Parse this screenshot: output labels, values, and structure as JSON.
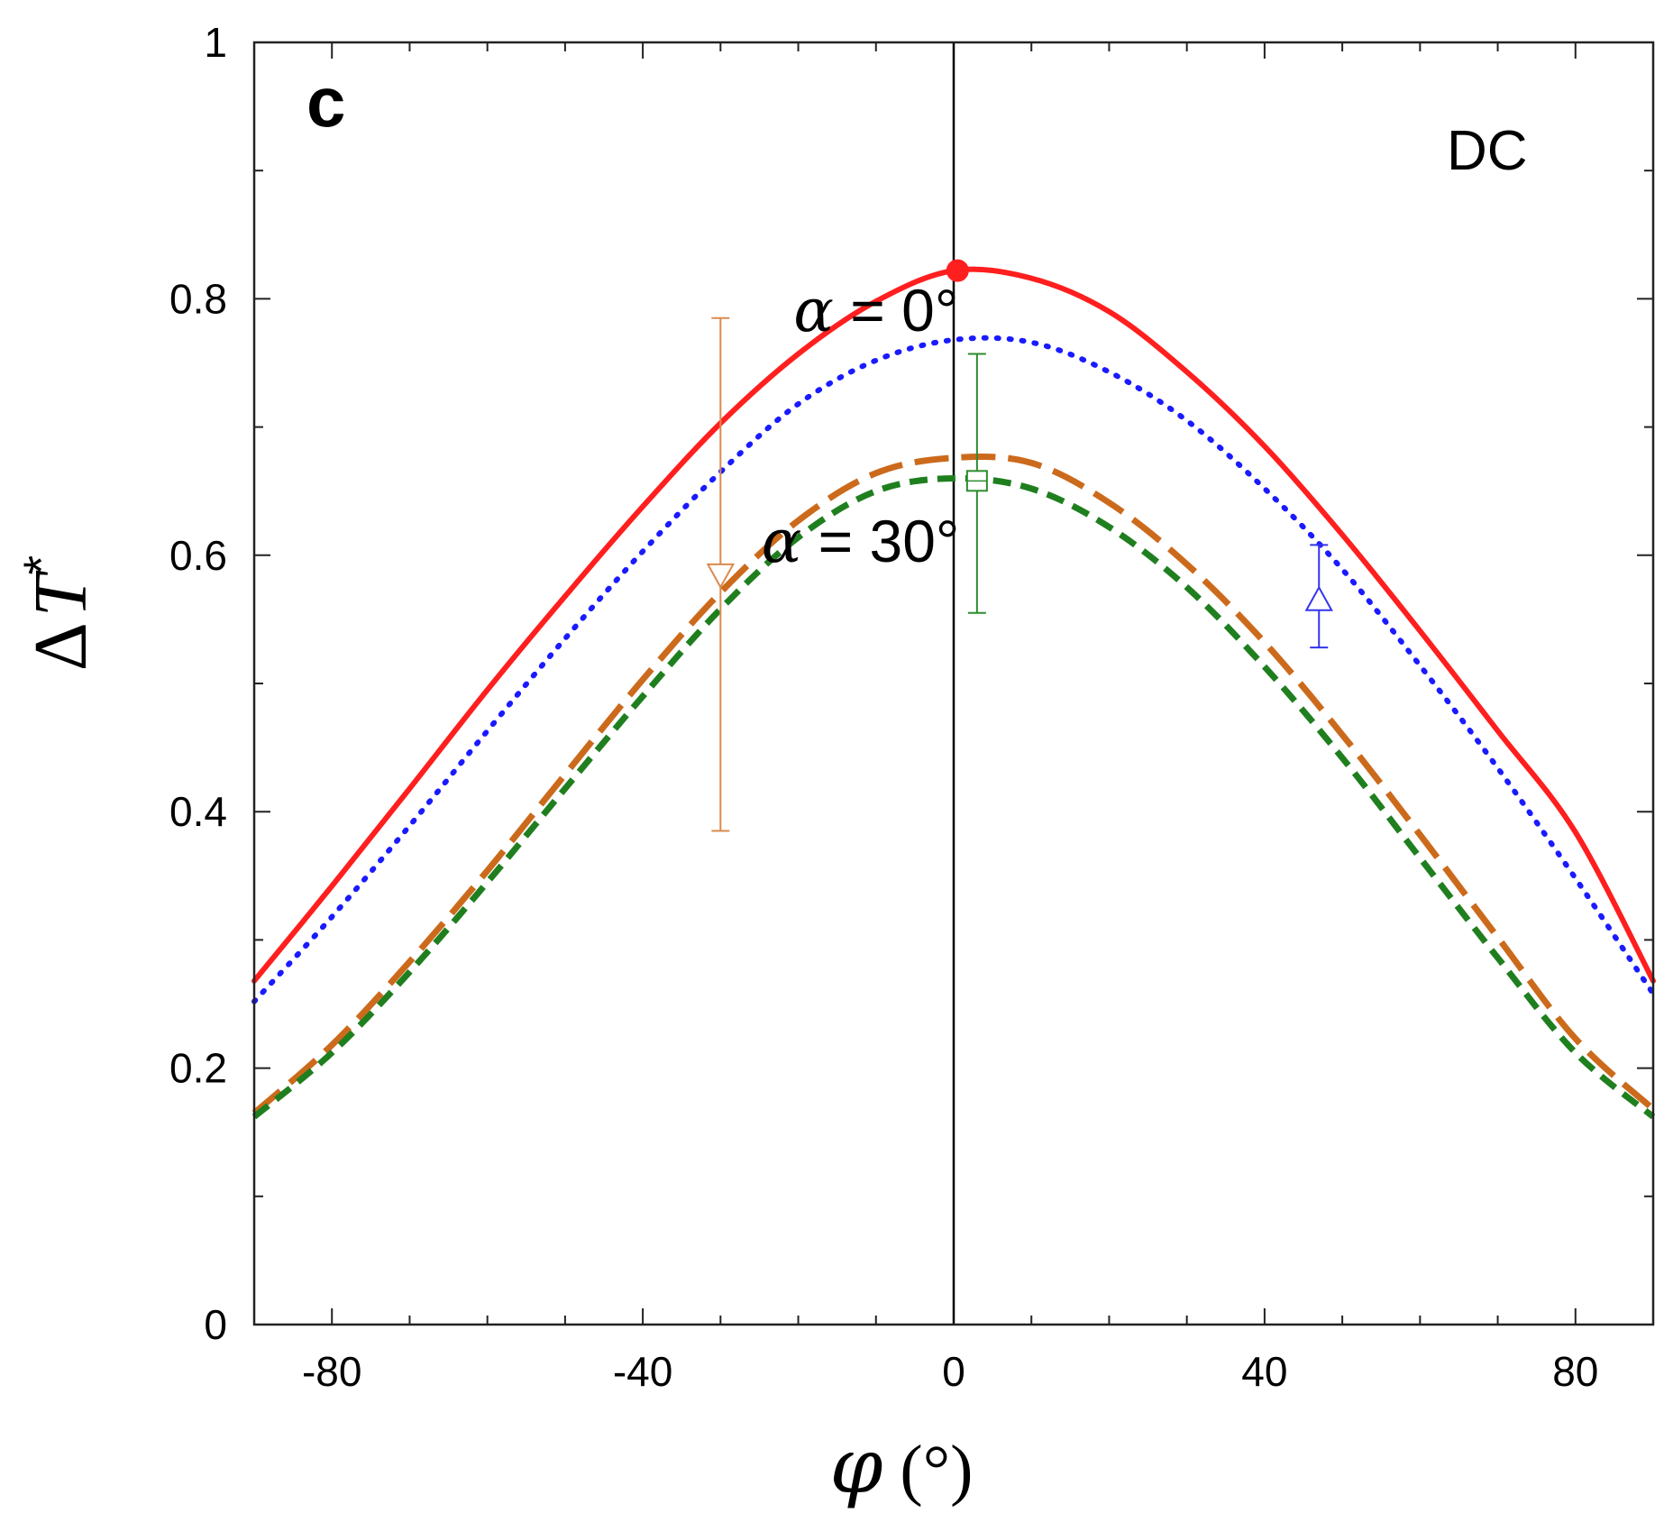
{
  "chart_data": {
    "type": "line",
    "panel_label": "c",
    "corner_label": "DC",
    "xlabel": {
      "symbol": "φ",
      "unit": " (°)"
    },
    "ylabel": {
      "delta": "Δ",
      "symbol": "T",
      "superscript": "*"
    },
    "xlim": [
      -90,
      90
    ],
    "ylim": [
      0,
      1
    ],
    "x_ticks": [
      -80,
      -40,
      0,
      40,
      80
    ],
    "x_tick_labels": [
      "-80",
      "-40",
      "0",
      "40",
      "80"
    ],
    "x_minor_step": 10,
    "y_ticks": [
      0,
      0.2,
      0.4,
      0.6,
      0.8,
      1
    ],
    "y_tick_labels": [
      "0",
      "0.2",
      "0.4",
      "0.6",
      "0.8",
      "1"
    ],
    "y_minor_step": 0.1,
    "vertical_reference_line_x": 0,
    "annotations": [
      {
        "symbol": "α",
        "value": " = 0°",
        "x": -10,
        "y": 0.775
      },
      {
        "symbol": "α",
        "value": " = 30°",
        "x": -12,
        "y": 0.595
      }
    ],
    "series": [
      {
        "name": "red-solid",
        "color": "#ff1f1f",
        "style": "solid",
        "x": [
          -90,
          -80,
          -70,
          -60,
          -50,
          -40,
          -30,
          -20,
          -10,
          0,
          10,
          20,
          30,
          40,
          50,
          60,
          70,
          80,
          90
        ],
        "y": [
          0.268,
          0.342,
          0.418,
          0.495,
          0.568,
          0.638,
          0.703,
          0.757,
          0.798,
          0.822,
          0.816,
          0.79,
          0.743,
          0.685,
          0.616,
          0.541,
          0.463,
          0.384,
          0.268
        ]
      },
      {
        "name": "blue-dotted",
        "color": "#1a1aff",
        "style": "dotted",
        "x": [
          -90,
          -80,
          -70,
          -60,
          -50,
          -40,
          -30,
          -20,
          -10,
          0,
          10,
          20,
          30,
          40,
          50,
          60,
          70,
          80,
          90
        ],
        "y": [
          0.252,
          0.318,
          0.389,
          0.463,
          0.535,
          0.603,
          0.665,
          0.718,
          0.752,
          0.768,
          0.766,
          0.743,
          0.705,
          0.652,
          0.589,
          0.514,
          0.434,
          0.348,
          0.258
        ]
      },
      {
        "name": "orange-longdash",
        "color": "#cc6a1c",
        "style": "long-dash",
        "x": [
          -90,
          -80,
          -70,
          -60,
          -50,
          -40,
          -30,
          -20,
          -10,
          0,
          10,
          20,
          30,
          40,
          50,
          60,
          70,
          80,
          90
        ],
        "y": [
          0.165,
          0.218,
          0.283,
          0.354,
          0.429,
          0.503,
          0.571,
          0.627,
          0.664,
          0.676,
          0.672,
          0.641,
          0.593,
          0.532,
          0.46,
          0.382,
          0.302,
          0.223,
          0.168
        ]
      },
      {
        "name": "green-dash",
        "color": "#1f7f1f",
        "style": "dash",
        "x": [
          -90,
          -80,
          -70,
          -60,
          -50,
          -40,
          -30,
          -20,
          -10,
          0,
          10,
          20,
          30,
          40,
          50,
          60,
          70,
          80,
          90
        ],
        "y": [
          0.162,
          0.212,
          0.275,
          0.345,
          0.418,
          0.49,
          0.558,
          0.614,
          0.65,
          0.66,
          0.652,
          0.622,
          0.575,
          0.513,
          0.442,
          0.364,
          0.286,
          0.212,
          0.162
        ]
      }
    ],
    "points": [
      {
        "name": "red-filled-circle",
        "marker": "circle-filled",
        "color": "#ff1f1f",
        "x": 0.5,
        "y": 0.822
      },
      {
        "name": "orange-open-triangle-down",
        "marker": "triangle-down-open",
        "color": "#d98a4e",
        "x": -30,
        "y": 0.585,
        "yerr_low": 0.385,
        "yerr_high": 0.785
      },
      {
        "name": "green-open-square",
        "marker": "square-open",
        "color": "#2e8b2e",
        "x": 3,
        "y": 0.658,
        "yerr_low": 0.555,
        "yerr_high": 0.757
      },
      {
        "name": "blue-open-triangle-up",
        "marker": "triangle-up-open",
        "color": "#3333ee",
        "x": 47,
        "y": 0.565,
        "yerr_low": 0.528,
        "yerr_high": 0.608
      }
    ]
  }
}
